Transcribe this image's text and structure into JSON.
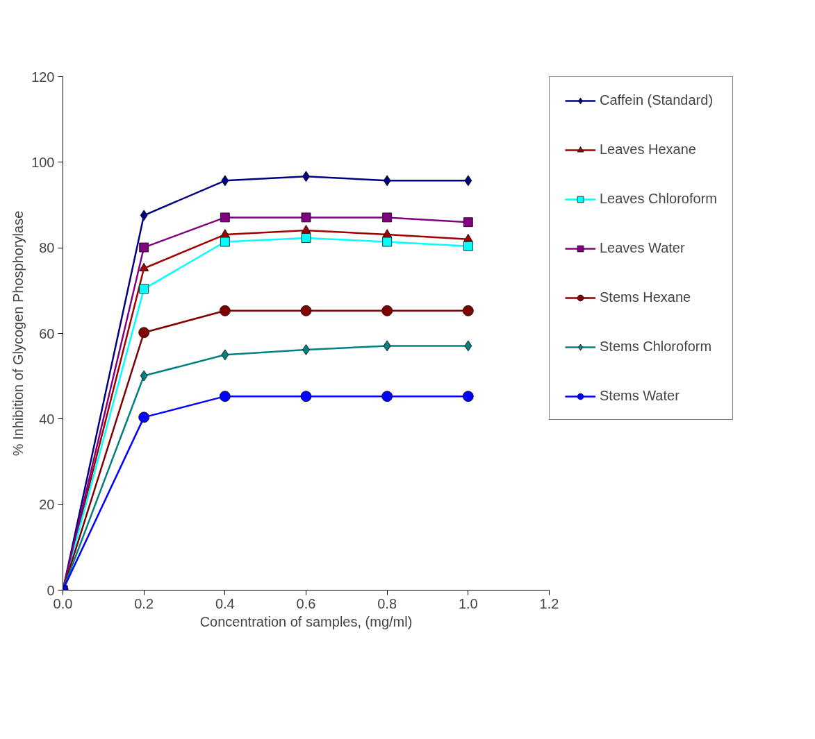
{
  "chart_data": {
    "type": "line",
    "xlabel": "Concentration of samples, (mg/ml)",
    "ylabel": "% Inhibition of Glycogen Phosphorylase",
    "x": [
      0,
      0.2,
      0.4,
      0.6,
      0.8,
      1.0
    ],
    "xlim": [
      0,
      1.2
    ],
    "xticks": [
      {
        "value": 0,
        "label": "0.0"
      },
      {
        "value": 0.2,
        "label": "0.2"
      },
      {
        "value": 0.4,
        "label": "0.4"
      },
      {
        "value": 0.6,
        "label": "0.6"
      },
      {
        "value": 0.8,
        "label": "0.8"
      },
      {
        "value": 1.0,
        "label": "1.0"
      },
      {
        "value": 1.2,
        "label": "1.2"
      }
    ],
    "ylim": [
      0,
      120
    ],
    "yticks": [
      0,
      20,
      40,
      60,
      80,
      100,
      120
    ],
    "grid": false,
    "legend": "right",
    "line_style": "solid",
    "series": [
      {
        "name": "Caffein (Standard)",
        "color": "#000080",
        "marker": "diamond",
        "values": [
          0,
          87.6,
          95.7,
          96.7,
          95.7,
          95.7
        ]
      },
      {
        "name": "Leaves Hexane",
        "color": "#a00000",
        "marker": "triangle",
        "values": [
          0,
          75.2,
          83.1,
          84.1,
          83.1,
          82.0
        ]
      },
      {
        "name": "Leaves Chloroform",
        "color": "#00ffff",
        "marker": "square",
        "values": [
          0,
          70.4,
          81.4,
          82.3,
          81.4,
          80.4
        ]
      },
      {
        "name": "Leaves Water",
        "color": "#800080",
        "marker": "square",
        "values": [
          0,
          80.1,
          87.1,
          87.1,
          87.1,
          86.0
        ]
      },
      {
        "name": "Stems Hexane",
        "color": "#800000",
        "marker": "circle",
        "values": [
          0,
          60.2,
          65.3,
          65.3,
          65.3,
          65.3
        ]
      },
      {
        "name": "Stems Chloroform",
        "color": "#008080",
        "marker": "diamond",
        "values": [
          0,
          50.1,
          55.0,
          56.2,
          57.1,
          57.1
        ]
      },
      {
        "name": "Stems Water",
        "color": "#0000ff",
        "marker": "circle",
        "values": [
          0,
          40.4,
          45.3,
          45.3,
          45.3,
          45.3
        ]
      }
    ]
  }
}
